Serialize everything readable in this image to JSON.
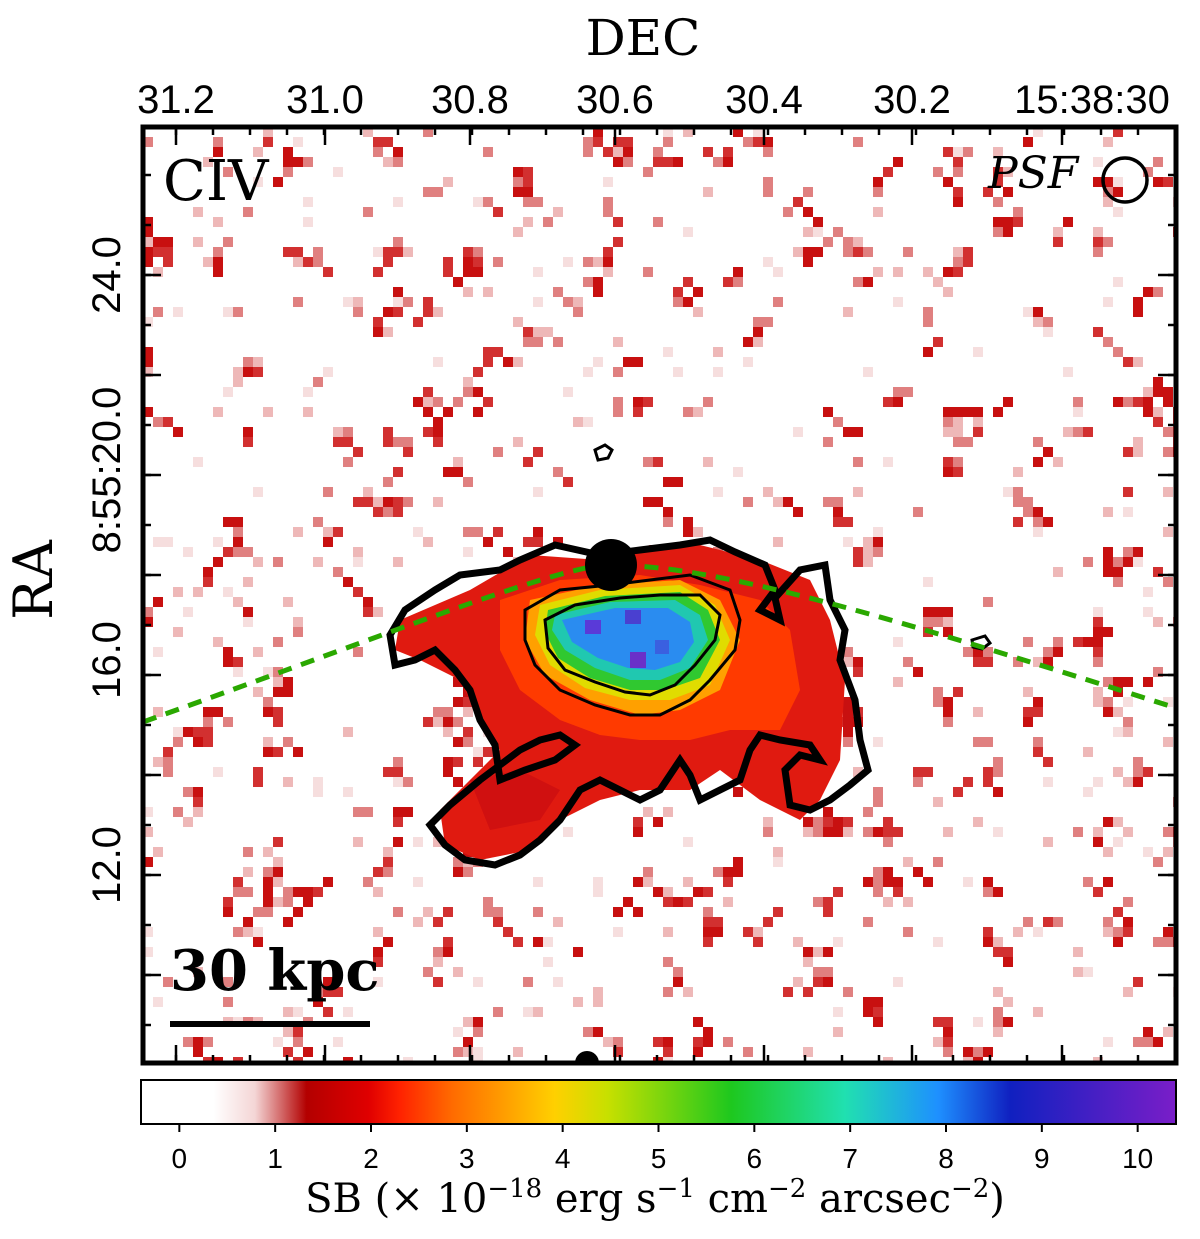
{
  "chart_data": {
    "type": "heatmap",
    "panel_label": "CIV",
    "psf_label": "PSF",
    "scale_bar_label": "30 kpc",
    "x_axis": {
      "title": "DEC",
      "position": "top",
      "ticks": [
        "31.2",
        "31.0",
        "30.8",
        "30.6",
        "30.4",
        "30.2",
        "15:38:30"
      ]
    },
    "y_axis": {
      "title": "RA",
      "ticks": [
        "24.0",
        "8:55:20.0",
        "16.0",
        "12.0"
      ]
    },
    "colorbar": {
      "range": [
        -0.4,
        10.4
      ],
      "ticks": [
        0,
        1,
        2,
        3,
        4,
        5,
        6,
        7,
        8,
        9,
        10
      ],
      "label": "SB (× 10",
      "label_exp1": "−18",
      "label_mid": " erg s",
      "label_exp2": "−1",
      "label_mid2": " cm",
      "label_exp3": "−2",
      "label_mid3": " arcsec",
      "label_exp4": "−2",
      "label_end": ")"
    },
    "colormap": [
      "#ffffff",
      "#ffffff",
      "#f4d6d6",
      "#b30000",
      "#e00000",
      "#ff2200",
      "#ff6a00",
      "#ffd000",
      "#c8e000",
      "#1ec81e",
      "#20e0b0",
      "#1e90ff",
      "#1020c0",
      "#7a1ec8"
    ],
    "colormap_stops": [
      0,
      0.07,
      0.11,
      0.16,
      0.22,
      0.25,
      0.3,
      0.4,
      0.45,
      0.57,
      0.68,
      0.77,
      0.84,
      1.0
    ]
  }
}
